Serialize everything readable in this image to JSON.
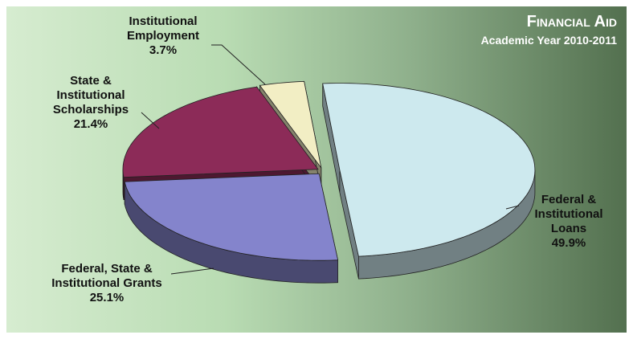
{
  "chart_data": {
    "type": "pie3d",
    "title": "Financial Aid",
    "subtitle": "Academic Year 2010-2011",
    "categories": [
      "Federal & Institutional Loans",
      "Federal, State & Institutional Grants",
      "State & Institutional Scholarships",
      "Institutional Employment"
    ],
    "values": [
      49.9,
      25.1,
      21.4,
      3.7
    ],
    "value_labels": [
      "49.9%",
      "25.1%",
      "21.4%",
      "3.7%"
    ],
    "colors": [
      "#cde9ee",
      "#8484cc",
      "#8c2b58",
      "#f2eec4"
    ]
  }
}
